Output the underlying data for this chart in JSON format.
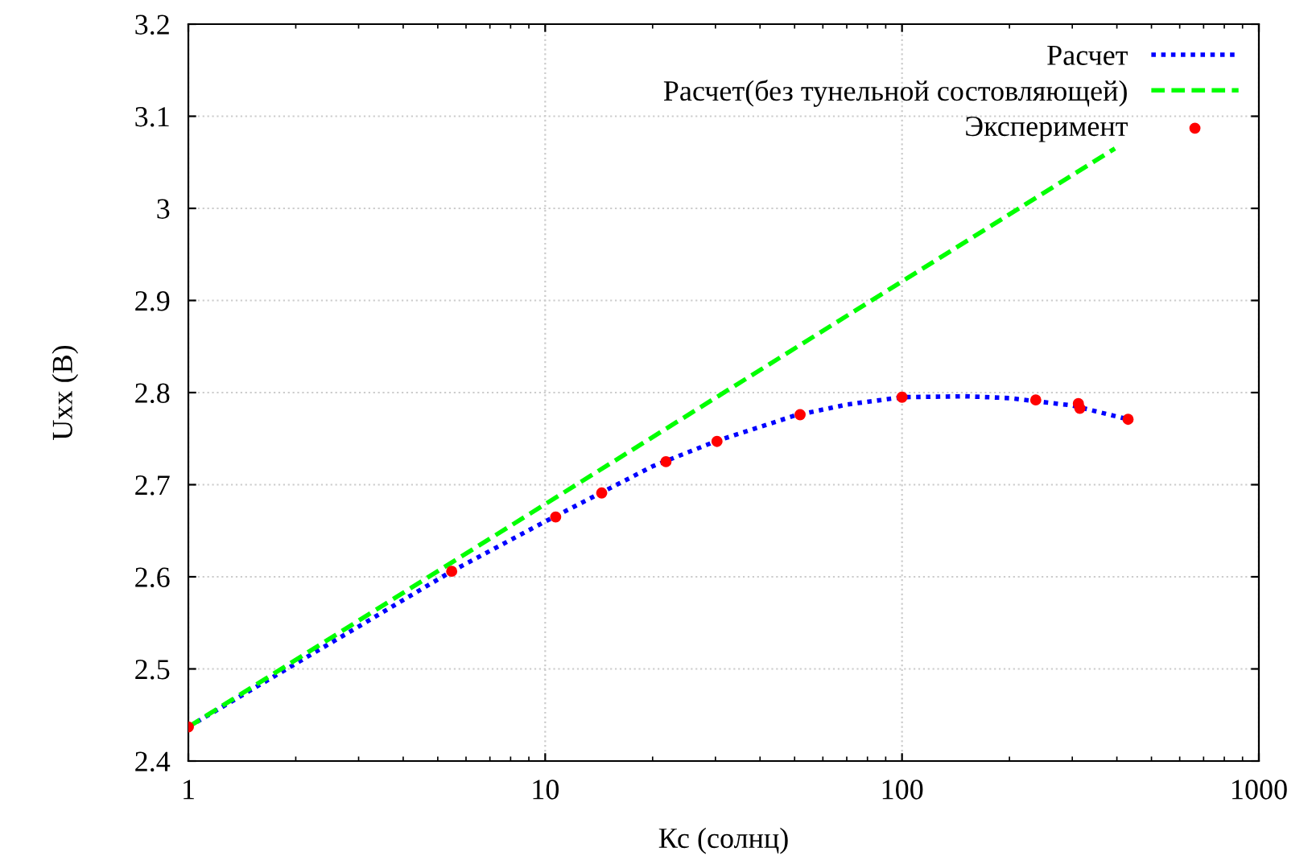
{
  "chart_data": {
    "type": "line",
    "xlabel": "Кс (солнц)",
    "ylabel": "Uxx (B)",
    "log": "x",
    "xlim": [
      1,
      1000
    ],
    "xticks": [
      1,
      10,
      100,
      1000
    ],
    "ylim": [
      2.4,
      3.2
    ],
    "yticks": [
      2.4,
      2.5,
      2.6,
      2.7,
      2.8,
      2.9,
      3,
      3.1,
      3.2
    ],
    "grid": true,
    "legend": "top right",
    "series": [
      {
        "name": "Расчет",
        "line_style": "dotted",
        "color": "#0000ff",
        "x": [
          1,
          3,
          5.47,
          10,
          20,
          30,
          50,
          70,
          100,
          150,
          200,
          300,
          430
        ],
        "values": [
          2.437,
          2.546,
          2.606,
          2.66,
          2.72,
          2.747,
          2.775,
          2.787,
          2.795,
          2.796,
          2.794,
          2.786,
          2.771
        ]
      },
      {
        "name": "Расчет(без тунельной состовляющей)",
        "line_style": "dashed",
        "color": "#00ff00",
        "x": [
          1,
          395
        ],
        "values": [
          2.437,
          3.065
        ]
      },
      {
        "name": "Эксперимент",
        "type": "scatter",
        "marker": "circle",
        "color": "#ff0000",
        "x": [
          1,
          5.47,
          10.7,
          14.4,
          21.8,
          30.3,
          51.8,
          100,
          237,
          312,
          315,
          430
        ],
        "values": [
          2.437,
          2.606,
          2.665,
          2.691,
          2.725,
          2.747,
          2.776,
          2.795,
          2.792,
          2.788,
          2.783,
          2.771
        ]
      }
    ]
  }
}
